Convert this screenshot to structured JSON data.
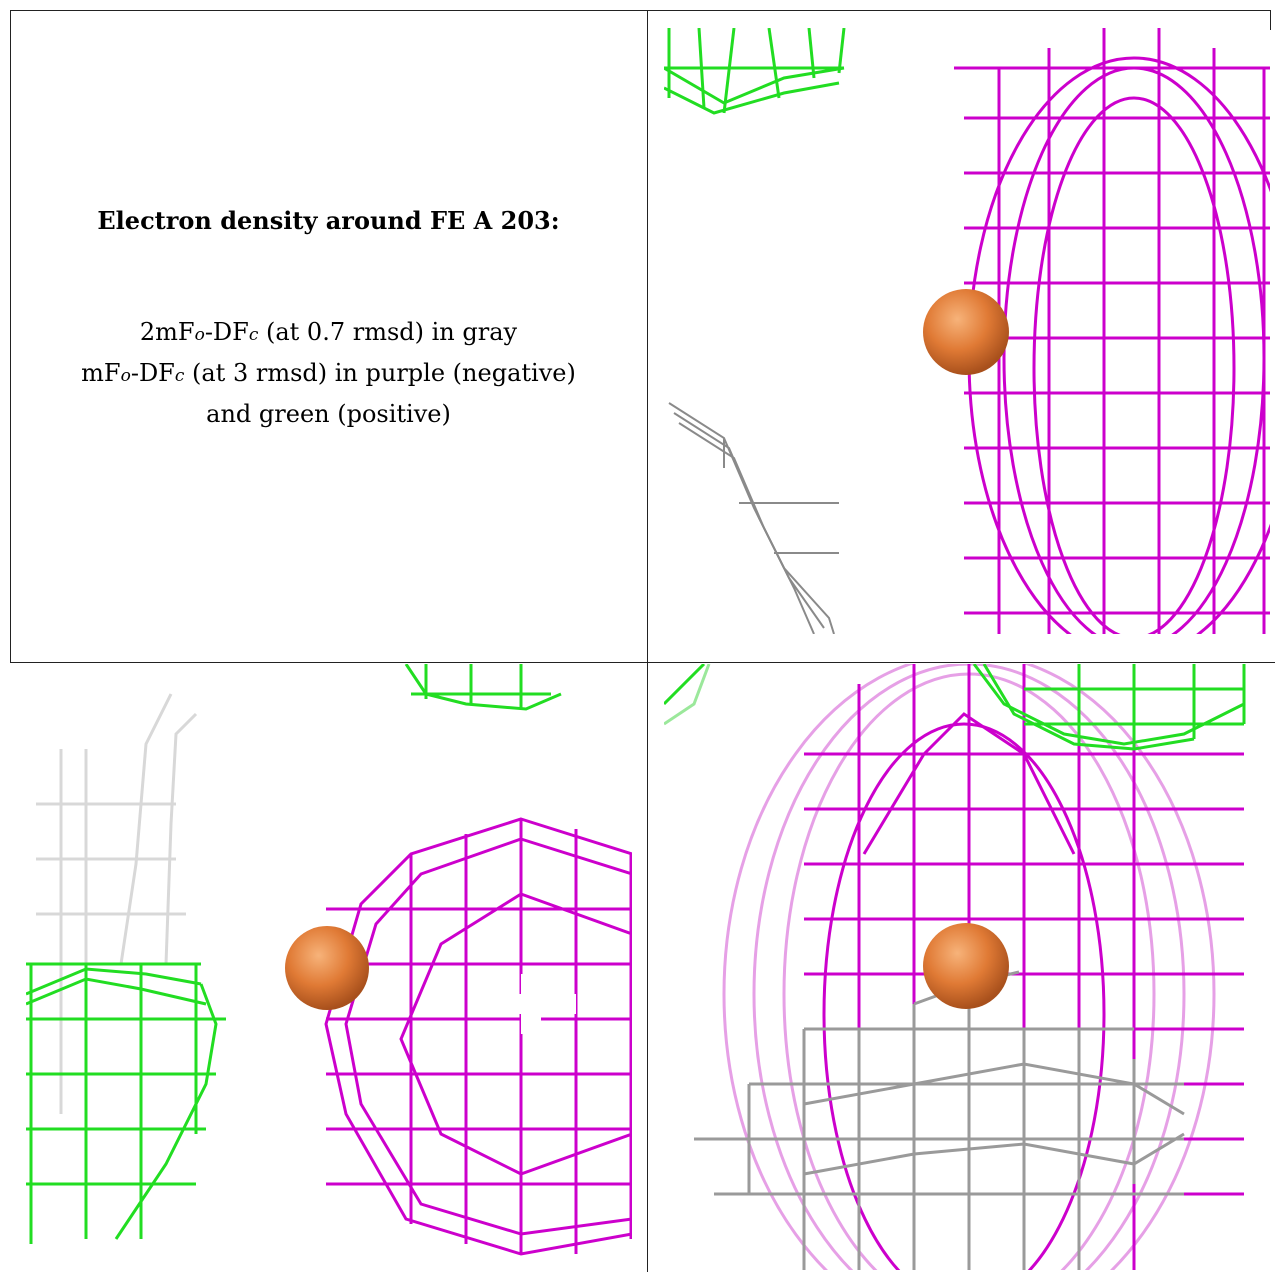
{
  "caption": {
    "title": "Electron density around FE A 203:",
    "line1_prefix": "2mF",
    "line1_sub1": "o",
    "line1_mid": "-DF",
    "line1_sub2": "c",
    "line1_suffix": " (at 0.7 rmsd) in gray",
    "line2_prefix": "mF",
    "line2_sub1": "o",
    "line2_mid": "-DF",
    "line2_sub2": "c",
    "line2_suffix": " (at 3 rmsd) in purple (negative)",
    "line3": "and green (positive)"
  },
  "colors": {
    "negative": "#cc00cc",
    "positive": "#22dd22",
    "gray_map": "#9a9a9a",
    "atom": "#e07a35"
  },
  "icons": {
    "atom": "orange-sphere"
  }
}
